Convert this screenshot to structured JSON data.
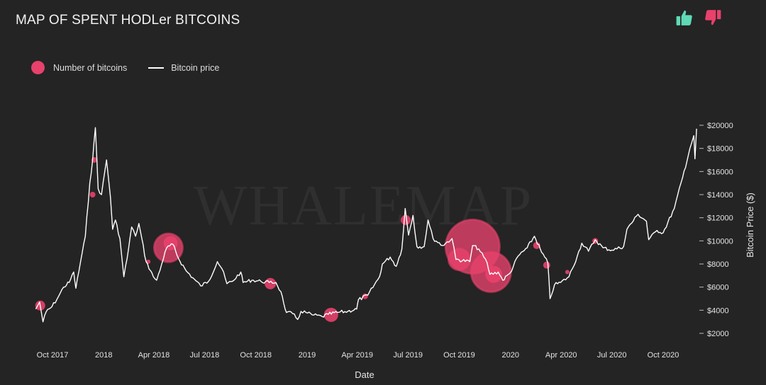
{
  "header": {
    "title": "MAP OF SPENT HODLer BITCOINS",
    "thumbs_up_icon": "thumbs-up-icon",
    "thumbs_down_icon": "thumbs-down-icon"
  },
  "legend": {
    "bubbles_label": "Number of bitcoins",
    "price_label": "Bitcoin price"
  },
  "watermark": "WHALEMAP",
  "colors": {
    "background": "#242424",
    "bubble": "#e8416b",
    "price_line": "#ffffff",
    "thumbs_up": "#5fd9b6",
    "thumbs_down": "#e8416b"
  },
  "chart_data": {
    "type": "line",
    "xlabel": "Date",
    "ylabel": "Bitcoin Price ($)",
    "y_axis_side": "right",
    "ylim": [
      1500,
      20500
    ],
    "xlim": [
      "2017-09-01",
      "2020-12-01"
    ],
    "y_ticks": [
      {
        "value": 2000,
        "label": "$2000"
      },
      {
        "value": 4000,
        "label": "$4000"
      },
      {
        "value": 6000,
        "label": "$6000"
      },
      {
        "value": 8000,
        "label": "$8000"
      },
      {
        "value": 10000,
        "label": "$10000"
      },
      {
        "value": 12000,
        "label": "$12000"
      },
      {
        "value": 14000,
        "label": "$14000"
      },
      {
        "value": 16000,
        "label": "$16000"
      },
      {
        "value": 18000,
        "label": "$18000"
      },
      {
        "value": 20000,
        "label": "$20000"
      }
    ],
    "x_ticks": [
      {
        "date": "2017-10-01",
        "label": "Oct 2017"
      },
      {
        "date": "2018-01-01",
        "label": "2018"
      },
      {
        "date": "2018-04-01",
        "label": "Apr 2018"
      },
      {
        "date": "2018-07-01",
        "label": "Jul 2018"
      },
      {
        "date": "2018-10-01",
        "label": "Oct 2018"
      },
      {
        "date": "2019-01-01",
        "label": "2019"
      },
      {
        "date": "2019-04-01",
        "label": "Apr 2019"
      },
      {
        "date": "2019-07-01",
        "label": "Jul 2019"
      },
      {
        "date": "2019-10-01",
        "label": "Oct 2019"
      },
      {
        "date": "2020-01-01",
        "label": "2020"
      },
      {
        "date": "2020-04-01",
        "label": "Apr 2020"
      },
      {
        "date": "2020-07-01",
        "label": "Jul 2020"
      },
      {
        "date": "2020-10-01",
        "label": "Oct 2020"
      }
    ],
    "series": [
      {
        "name": "Bitcoin price",
        "points": [
          [
            "2017-09-01",
            4100
          ],
          [
            "2017-09-08",
            4700
          ],
          [
            "2017-09-14",
            3000
          ],
          [
            "2017-09-20",
            3900
          ],
          [
            "2017-09-30",
            4300
          ],
          [
            "2017-10-12",
            5200
          ],
          [
            "2017-10-21",
            6000
          ],
          [
            "2017-10-31",
            6400
          ],
          [
            "2017-11-08",
            7300
          ],
          [
            "2017-11-12",
            5900
          ],
          [
            "2017-11-20",
            8100
          ],
          [
            "2017-11-29",
            10400
          ],
          [
            "2017-12-07",
            15000
          ],
          [
            "2017-12-12",
            17000
          ],
          [
            "2017-12-17",
            19800
          ],
          [
            "2017-12-22",
            14500
          ],
          [
            "2017-12-28",
            14000
          ],
          [
            "2018-01-06",
            17000
          ],
          [
            "2018-01-13",
            13800
          ],
          [
            "2018-01-17",
            11000
          ],
          [
            "2018-01-22",
            11800
          ],
          [
            "2018-01-30",
            10200
          ],
          [
            "2018-02-06",
            6900
          ],
          [
            "2018-02-12",
            8500
          ],
          [
            "2018-02-20",
            11200
          ],
          [
            "2018-02-27",
            10400
          ],
          [
            "2018-03-05",
            11500
          ],
          [
            "2018-03-18",
            8200
          ],
          [
            "2018-03-31",
            6900
          ],
          [
            "2018-04-06",
            6600
          ],
          [
            "2018-04-15",
            8000
          ],
          [
            "2018-04-24",
            9400
          ],
          [
            "2018-05-05",
            9700
          ],
          [
            "2018-05-15",
            8500
          ],
          [
            "2018-05-29",
            7400
          ],
          [
            "2018-06-10",
            6800
          ],
          [
            "2018-06-24",
            6100
          ],
          [
            "2018-07-08",
            6500
          ],
          [
            "2018-07-24",
            8200
          ],
          [
            "2018-08-01",
            7600
          ],
          [
            "2018-08-10",
            6300
          ],
          [
            "2018-08-20",
            6500
          ],
          [
            "2018-09-04",
            7300
          ],
          [
            "2018-09-08",
            6400
          ],
          [
            "2018-09-24",
            6600
          ],
          [
            "2018-10-10",
            6500
          ],
          [
            "2018-10-25",
            6400
          ],
          [
            "2018-11-06",
            6400
          ],
          [
            "2018-11-15",
            5600
          ],
          [
            "2018-11-20",
            4600
          ],
          [
            "2018-11-25",
            3800
          ],
          [
            "2018-12-06",
            3700
          ],
          [
            "2018-12-15",
            3200
          ],
          [
            "2018-12-21",
            3900
          ],
          [
            "2018-12-30",
            3800
          ],
          [
            "2019-01-10",
            3600
          ],
          [
            "2019-01-28",
            3450
          ],
          [
            "2019-02-08",
            3650
          ],
          [
            "2019-02-24",
            3800
          ],
          [
            "2019-03-15",
            3900
          ],
          [
            "2019-03-31",
            4100
          ],
          [
            "2019-04-03",
            4900
          ],
          [
            "2019-04-20",
            5300
          ],
          [
            "2019-05-11",
            6900
          ],
          [
            "2019-05-16",
            8000
          ],
          [
            "2019-05-30",
            8600
          ],
          [
            "2019-06-10",
            7800
          ],
          [
            "2019-06-20",
            9300
          ],
          [
            "2019-06-26",
            12800
          ],
          [
            "2019-07-02",
            10500
          ],
          [
            "2019-07-10",
            12200
          ],
          [
            "2019-07-17",
            9500
          ],
          [
            "2019-07-30",
            9500
          ],
          [
            "2019-08-06",
            11800
          ],
          [
            "2019-08-15",
            10200
          ],
          [
            "2019-09-01",
            9600
          ],
          [
            "2019-09-18",
            10200
          ],
          [
            "2019-09-25",
            8400
          ],
          [
            "2019-10-20",
            8200
          ],
          [
            "2019-10-25",
            9600
          ],
          [
            "2019-11-05",
            9300
          ],
          [
            "2019-11-20",
            8100
          ],
          [
            "2019-11-25",
            7100
          ],
          [
            "2019-12-10",
            7300
          ],
          [
            "2019-12-18",
            6600
          ],
          [
            "2019-12-31",
            7200
          ],
          [
            "2020-01-15",
            8700
          ],
          [
            "2020-01-31",
            9400
          ],
          [
            "2020-02-13",
            10400
          ],
          [
            "2020-02-26",
            9000
          ],
          [
            "2020-03-08",
            8100
          ],
          [
            "2020-03-12",
            5000
          ],
          [
            "2020-03-20",
            6200
          ],
          [
            "2020-03-31",
            6400
          ],
          [
            "2020-04-15",
            6900
          ],
          [
            "2020-04-30",
            8700
          ],
          [
            "2020-05-08",
            9800
          ],
          [
            "2020-05-20",
            9100
          ],
          [
            "2020-06-01",
            10100
          ],
          [
            "2020-06-15",
            9400
          ],
          [
            "2020-07-01",
            9200
          ],
          [
            "2020-07-22",
            9500
          ],
          [
            "2020-07-28",
            11000
          ],
          [
            "2020-08-17",
            12300
          ],
          [
            "2020-09-01",
            11700
          ],
          [
            "2020-09-05",
            10100
          ],
          [
            "2020-09-20",
            10900
          ],
          [
            "2020-10-01",
            10700
          ],
          [
            "2020-10-21",
            12800
          ],
          [
            "2020-11-05",
            15500
          ],
          [
            "2020-11-18",
            18000
          ],
          [
            "2020-11-25",
            19100
          ],
          [
            "2020-11-27",
            17100
          ],
          [
            "2020-11-30",
            19700
          ]
        ]
      },
      {
        "name": "Number of bitcoins",
        "type": "bubble",
        "points": [
          [
            "2017-09-09",
            4400,
            7
          ],
          [
            "2017-12-12",
            14000,
            4
          ],
          [
            "2017-12-15",
            17000,
            4
          ],
          [
            "2018-03-22",
            8200,
            3
          ],
          [
            "2018-04-27",
            9400,
            20
          ],
          [
            "2018-05-01",
            9800,
            10
          ],
          [
            "2018-10-27",
            6300,
            8
          ],
          [
            "2019-02-13",
            3600,
            10
          ],
          [
            "2019-04-15",
            5200,
            4
          ],
          [
            "2019-06-27",
            11800,
            7
          ],
          [
            "2019-10-01",
            8400,
            15
          ],
          [
            "2019-10-25",
            9500,
            38
          ],
          [
            "2019-11-27",
            7300,
            28
          ],
          [
            "2019-12-02",
            7100,
            12
          ],
          [
            "2020-02-17",
            9600,
            5
          ],
          [
            "2020-03-06",
            7900,
            5
          ],
          [
            "2020-04-12",
            7300,
            3
          ],
          [
            "2020-06-01",
            10000,
            4
          ]
        ]
      }
    ]
  }
}
